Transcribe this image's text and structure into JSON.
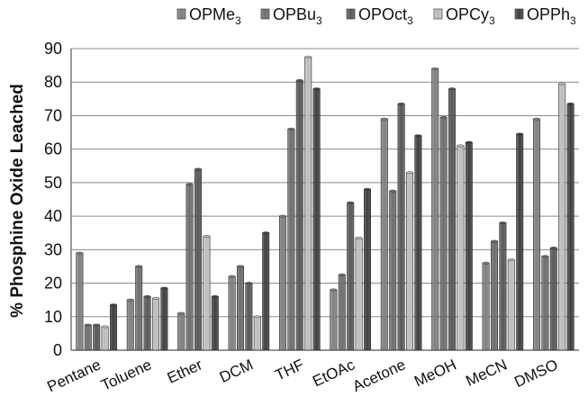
{
  "chart_data": {
    "type": "bar",
    "title": "",
    "xlabel": "",
    "ylabel": "% Phosphine Oxide Leached",
    "ylim": [
      0,
      90
    ],
    "yticks": [
      0,
      10,
      20,
      30,
      40,
      50,
      60,
      70,
      80,
      90
    ],
    "grid": true,
    "legend_position": "top",
    "categories": [
      "Pentane",
      "Toluene",
      "Ether",
      "DCM",
      "THF",
      "EtOAc",
      "Acetone",
      "MeOH",
      "MeCN",
      "DMSO"
    ],
    "series": [
      {
        "name": "OPMe3",
        "base": "OPMe",
        "sub": "3",
        "color": "#808080",
        "values": [
          29,
          15,
          11,
          22,
          40,
          18,
          69,
          84,
          26,
          69
        ]
      },
      {
        "name": "OPBu3",
        "base": "OPBu",
        "sub": "3",
        "color": "#6e6e6e",
        "values": [
          7.5,
          25,
          49.5,
          25,
          66,
          22.5,
          47.5,
          69.5,
          32.5,
          28
        ]
      },
      {
        "name": "OPOct3",
        "base": "OPOct",
        "sub": "3",
        "color": "#585858",
        "values": [
          7.5,
          16,
          54,
          20,
          80.5,
          44,
          73.5,
          78,
          38,
          30.5
        ]
      },
      {
        "name": "OPCy3",
        "base": "OPCy",
        "sub": "3",
        "color": "#bdbdbd",
        "values": [
          7,
          15.5,
          34,
          10,
          87.5,
          33.5,
          53,
          61,
          27,
          79.5
        ]
      },
      {
        "name": "OPPh3",
        "base": "OPPh",
        "sub": "3",
        "color": "#404040",
        "values": [
          13.5,
          18.5,
          16,
          35,
          78,
          48,
          64,
          62,
          64.5,
          73.5
        ]
      }
    ]
  }
}
